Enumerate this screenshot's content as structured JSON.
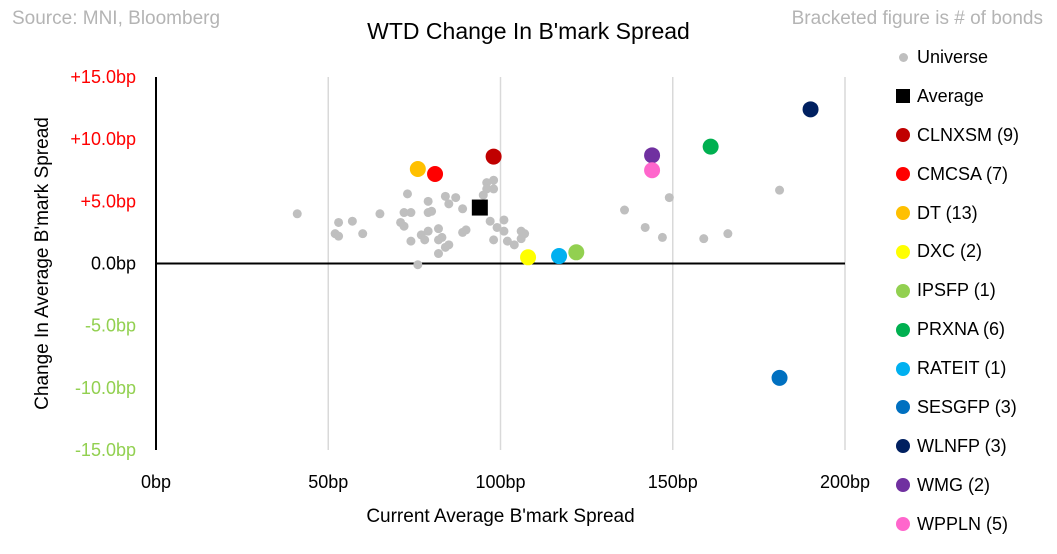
{
  "header": {
    "source": "Source: MNI, Bloomberg",
    "note": "Bracketed figure is # of bonds"
  },
  "chart_data": {
    "type": "scatter",
    "title": "WTD Change In B'mark Spread",
    "xlabel": "Current Average B'mark Spread",
    "ylabel": "Change In Average B'mark Spread",
    "xlim": [
      0,
      200
    ],
    "ylim": [
      -15,
      15
    ],
    "x_ticks": [
      "0bp",
      "50bp",
      "100bp",
      "150bp",
      "200bp"
    ],
    "x_tick_values": [
      0,
      50,
      100,
      150,
      200
    ],
    "y_ticks": [
      "+15.0bp",
      "+10.0bp",
      "+5.0bp",
      "0.0bp",
      "-5.0bp",
      "-10.0bp",
      "-15.0bp"
    ],
    "y_tick_values": [
      15,
      10,
      5,
      0,
      -5,
      -10,
      -15
    ],
    "y_tick_colors": [
      "#ff0000",
      "#ff0000",
      "#ff0000",
      "#000000",
      "#92d050",
      "#92d050",
      "#92d050"
    ],
    "grid": "vertical",
    "legend_position": "right",
    "universe": {
      "name": "Universe",
      "color": "#bfbfbf",
      "points": [
        [
          41,
          4.0
        ],
        [
          52,
          2.4
        ],
        [
          53,
          3.3
        ],
        [
          53,
          2.2
        ],
        [
          57,
          3.4
        ],
        [
          60,
          2.4
        ],
        [
          65,
          4.0
        ],
        [
          71,
          3.3
        ],
        [
          72,
          4.1
        ],
        [
          72,
          3.0
        ],
        [
          73,
          5.6
        ],
        [
          74,
          4.1
        ],
        [
          74,
          1.8
        ],
        [
          76,
          -0.1
        ],
        [
          77,
          2.3
        ],
        [
          78,
          1.9
        ],
        [
          79,
          4.1
        ],
        [
          79,
          2.6
        ],
        [
          79,
          5.0
        ],
        [
          80,
          4.2
        ],
        [
          82,
          2.8
        ],
        [
          82,
          1.9
        ],
        [
          82,
          0.8
        ],
        [
          83,
          2.1
        ],
        [
          84,
          1.3
        ],
        [
          84,
          5.4
        ],
        [
          85,
          1.5
        ],
        [
          85,
          4.8
        ],
        [
          87,
          5.3
        ],
        [
          89,
          4.4
        ],
        [
          89,
          2.5
        ],
        [
          90,
          2.7
        ],
        [
          95,
          5.5
        ],
        [
          96,
          6.5
        ],
        [
          96,
          6.0
        ],
        [
          97,
          3.4
        ],
        [
          98,
          6.7
        ],
        [
          98,
          6.0
        ],
        [
          98,
          1.9
        ],
        [
          99,
          2.9
        ],
        [
          101,
          3.5
        ],
        [
          101,
          2.6
        ],
        [
          102,
          1.8
        ],
        [
          104,
          1.5
        ],
        [
          106,
          2.6
        ],
        [
          106,
          2.0
        ],
        [
          107,
          2.4
        ],
        [
          136,
          4.3
        ],
        [
          142,
          2.9
        ],
        [
          147,
          2.1
        ],
        [
          149,
          5.3
        ],
        [
          159,
          2.0
        ],
        [
          166,
          2.4
        ],
        [
          181,
          5.9
        ]
      ]
    },
    "average": {
      "name": "Average",
      "color": "#000000",
      "x": 94,
      "y": 4.5
    },
    "series": [
      {
        "name": "CLNXSM",
        "count": "(9)",
        "color": "#c00000",
        "x": 98,
        "y": 8.6
      },
      {
        "name": "CMCSA",
        "count": "(7)",
        "color": "#ff0000",
        "x": 81,
        "y": 7.2
      },
      {
        "name": "DT",
        "count": "(13)",
        "color": "#ffc000",
        "x": 76,
        "y": 7.6
      },
      {
        "name": "DXC",
        "count": "(2)",
        "color": "#ffff00",
        "x": 108,
        "y": 0.5
      },
      {
        "name": "IPSFP",
        "count": "(1)",
        "color": "#92d050",
        "x": 122,
        "y": 0.9
      },
      {
        "name": "PRXNA",
        "count": "(6)",
        "color": "#00b050",
        "x": 161,
        "y": 9.4
      },
      {
        "name": "RATEIT",
        "count": "(1)",
        "color": "#00b0f0",
        "x": 117,
        "y": 0.6
      },
      {
        "name": "SESGFP",
        "count": "(3)",
        "color": "#0070c0",
        "x": 181,
        "y": -9.2
      },
      {
        "name": "WLNFP",
        "count": "(3)",
        "color": "#002060",
        "x": 190,
        "y": 12.4
      },
      {
        "name": "WMG",
        "count": "(2)",
        "color": "#7030a0",
        "x": 144,
        "y": 8.7
      },
      {
        "name": "WPPLN",
        "count": "(5)",
        "color": "#ff66cc",
        "x": 144,
        "y": 7.5
      }
    ]
  }
}
